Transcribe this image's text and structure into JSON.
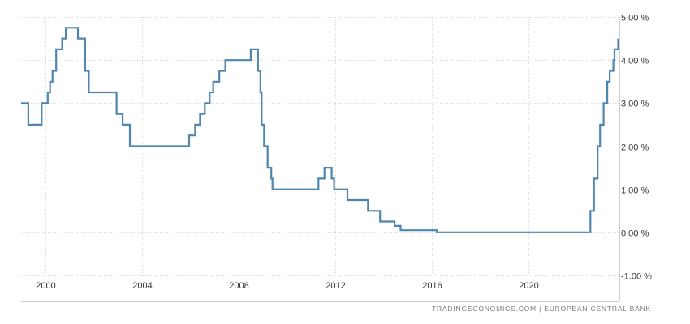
{
  "chart_data": {
    "type": "line",
    "title": "",
    "xlabel": "",
    "ylabel": "",
    "xlim": [
      1999.0,
      2023.75
    ],
    "ylim": [
      -1.0,
      5.0
    ],
    "y_ticks": [
      {
        "value": 5,
        "label": "5.00 %"
      },
      {
        "value": 4,
        "label": "4.00 %"
      },
      {
        "value": 3,
        "label": "3.00 %"
      },
      {
        "value": 2,
        "label": "2.00 %"
      },
      {
        "value": 1,
        "label": "1.00 %"
      },
      {
        "value": 0,
        "label": "0.00 %"
      },
      {
        "value": -1,
        "label": "-1.00 %"
      }
    ],
    "x_ticks": [
      {
        "value": 2000,
        "label": "2000"
      },
      {
        "value": 2004,
        "label": "2004"
      },
      {
        "value": 2008,
        "label": "2008"
      },
      {
        "value": 2012,
        "label": "2012"
      },
      {
        "value": 2016,
        "label": "2016"
      },
      {
        "value": 2020,
        "label": "2020"
      }
    ],
    "grid": true,
    "step": true,
    "line_color": "#4f86b0",
    "series": [
      {
        "points": [
          [
            1999.0,
            3.0
          ],
          [
            1999.3,
            2.5
          ],
          [
            1999.85,
            3.0
          ],
          [
            2000.1,
            3.25
          ],
          [
            2000.2,
            3.5
          ],
          [
            2000.3,
            3.75
          ],
          [
            2000.45,
            4.25
          ],
          [
            2000.7,
            4.5
          ],
          [
            2000.85,
            4.75
          ],
          [
            2001.35,
            4.5
          ],
          [
            2001.65,
            3.75
          ],
          [
            2001.8,
            3.25
          ],
          [
            2002.95,
            2.75
          ],
          [
            2003.2,
            2.5
          ],
          [
            2003.5,
            2.0
          ],
          [
            2005.95,
            2.25
          ],
          [
            2006.2,
            2.5
          ],
          [
            2006.4,
            2.75
          ],
          [
            2006.6,
            3.0
          ],
          [
            2006.8,
            3.25
          ],
          [
            2006.95,
            3.5
          ],
          [
            2007.2,
            3.75
          ],
          [
            2007.45,
            4.0
          ],
          [
            2008.5,
            4.25
          ],
          [
            2008.8,
            3.75
          ],
          [
            2008.9,
            3.25
          ],
          [
            2008.95,
            2.5
          ],
          [
            2009.05,
            2.0
          ],
          [
            2009.2,
            1.5
          ],
          [
            2009.35,
            1.25
          ],
          [
            2009.4,
            1.0
          ],
          [
            2011.3,
            1.25
          ],
          [
            2011.55,
            1.5
          ],
          [
            2011.85,
            1.25
          ],
          [
            2011.95,
            1.0
          ],
          [
            2012.5,
            0.75
          ],
          [
            2013.35,
            0.5
          ],
          [
            2013.85,
            0.25
          ],
          [
            2014.45,
            0.15
          ],
          [
            2014.7,
            0.05
          ],
          [
            2016.2,
            0.0
          ],
          [
            2022.55,
            0.5
          ],
          [
            2022.7,
            1.25
          ],
          [
            2022.85,
            2.0
          ],
          [
            2022.95,
            2.5
          ],
          [
            2023.1,
            3.0
          ],
          [
            2023.25,
            3.5
          ],
          [
            2023.35,
            3.75
          ],
          [
            2023.5,
            4.0
          ],
          [
            2023.55,
            4.25
          ],
          [
            2023.7,
            4.5
          ]
        ]
      }
    ]
  },
  "footer": {
    "source": "TRADINGECONOMICS.COM  |  EUROPEAN CENTRAL BANK"
  }
}
